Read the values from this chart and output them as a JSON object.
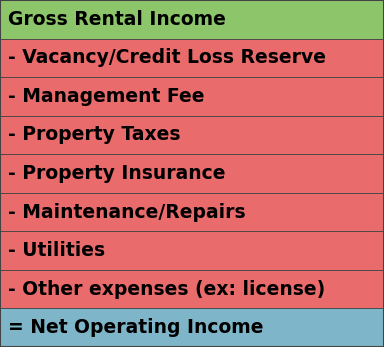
{
  "rows": [
    {
      "label": "Gross Rental Income",
      "prefix": "",
      "color": "#8dc56b",
      "text_color": "#000000"
    },
    {
      "label": "Vacancy/Credit Loss Reserve",
      "prefix": "- ",
      "color": "#e96b6b",
      "text_color": "#000000"
    },
    {
      "label": "Management Fee",
      "prefix": "- ",
      "color": "#e96b6b",
      "text_color": "#000000"
    },
    {
      "label": "Property Taxes",
      "prefix": "- ",
      "color": "#e96b6b",
      "text_color": "#000000"
    },
    {
      "label": "Property Insurance",
      "prefix": "- ",
      "color": "#e96b6b",
      "text_color": "#000000"
    },
    {
      "label": "Maintenance/Repairs",
      "prefix": "- ",
      "color": "#e96b6b",
      "text_color": "#000000"
    },
    {
      "label": "Utilities",
      "prefix": "- ",
      "color": "#e96b6b",
      "text_color": "#000000"
    },
    {
      "label": "Other expenses (ex: license)",
      "prefix": "- ",
      "color": "#e96b6b",
      "text_color": "#000000"
    },
    {
      "label": "Net Operating Income",
      "prefix": "= ",
      "color": "#7eb5c8",
      "text_color": "#000000"
    }
  ],
  "border_color": "#444444",
  "font_size": 13.5,
  "fig_width": 3.84,
  "fig_height": 3.47
}
